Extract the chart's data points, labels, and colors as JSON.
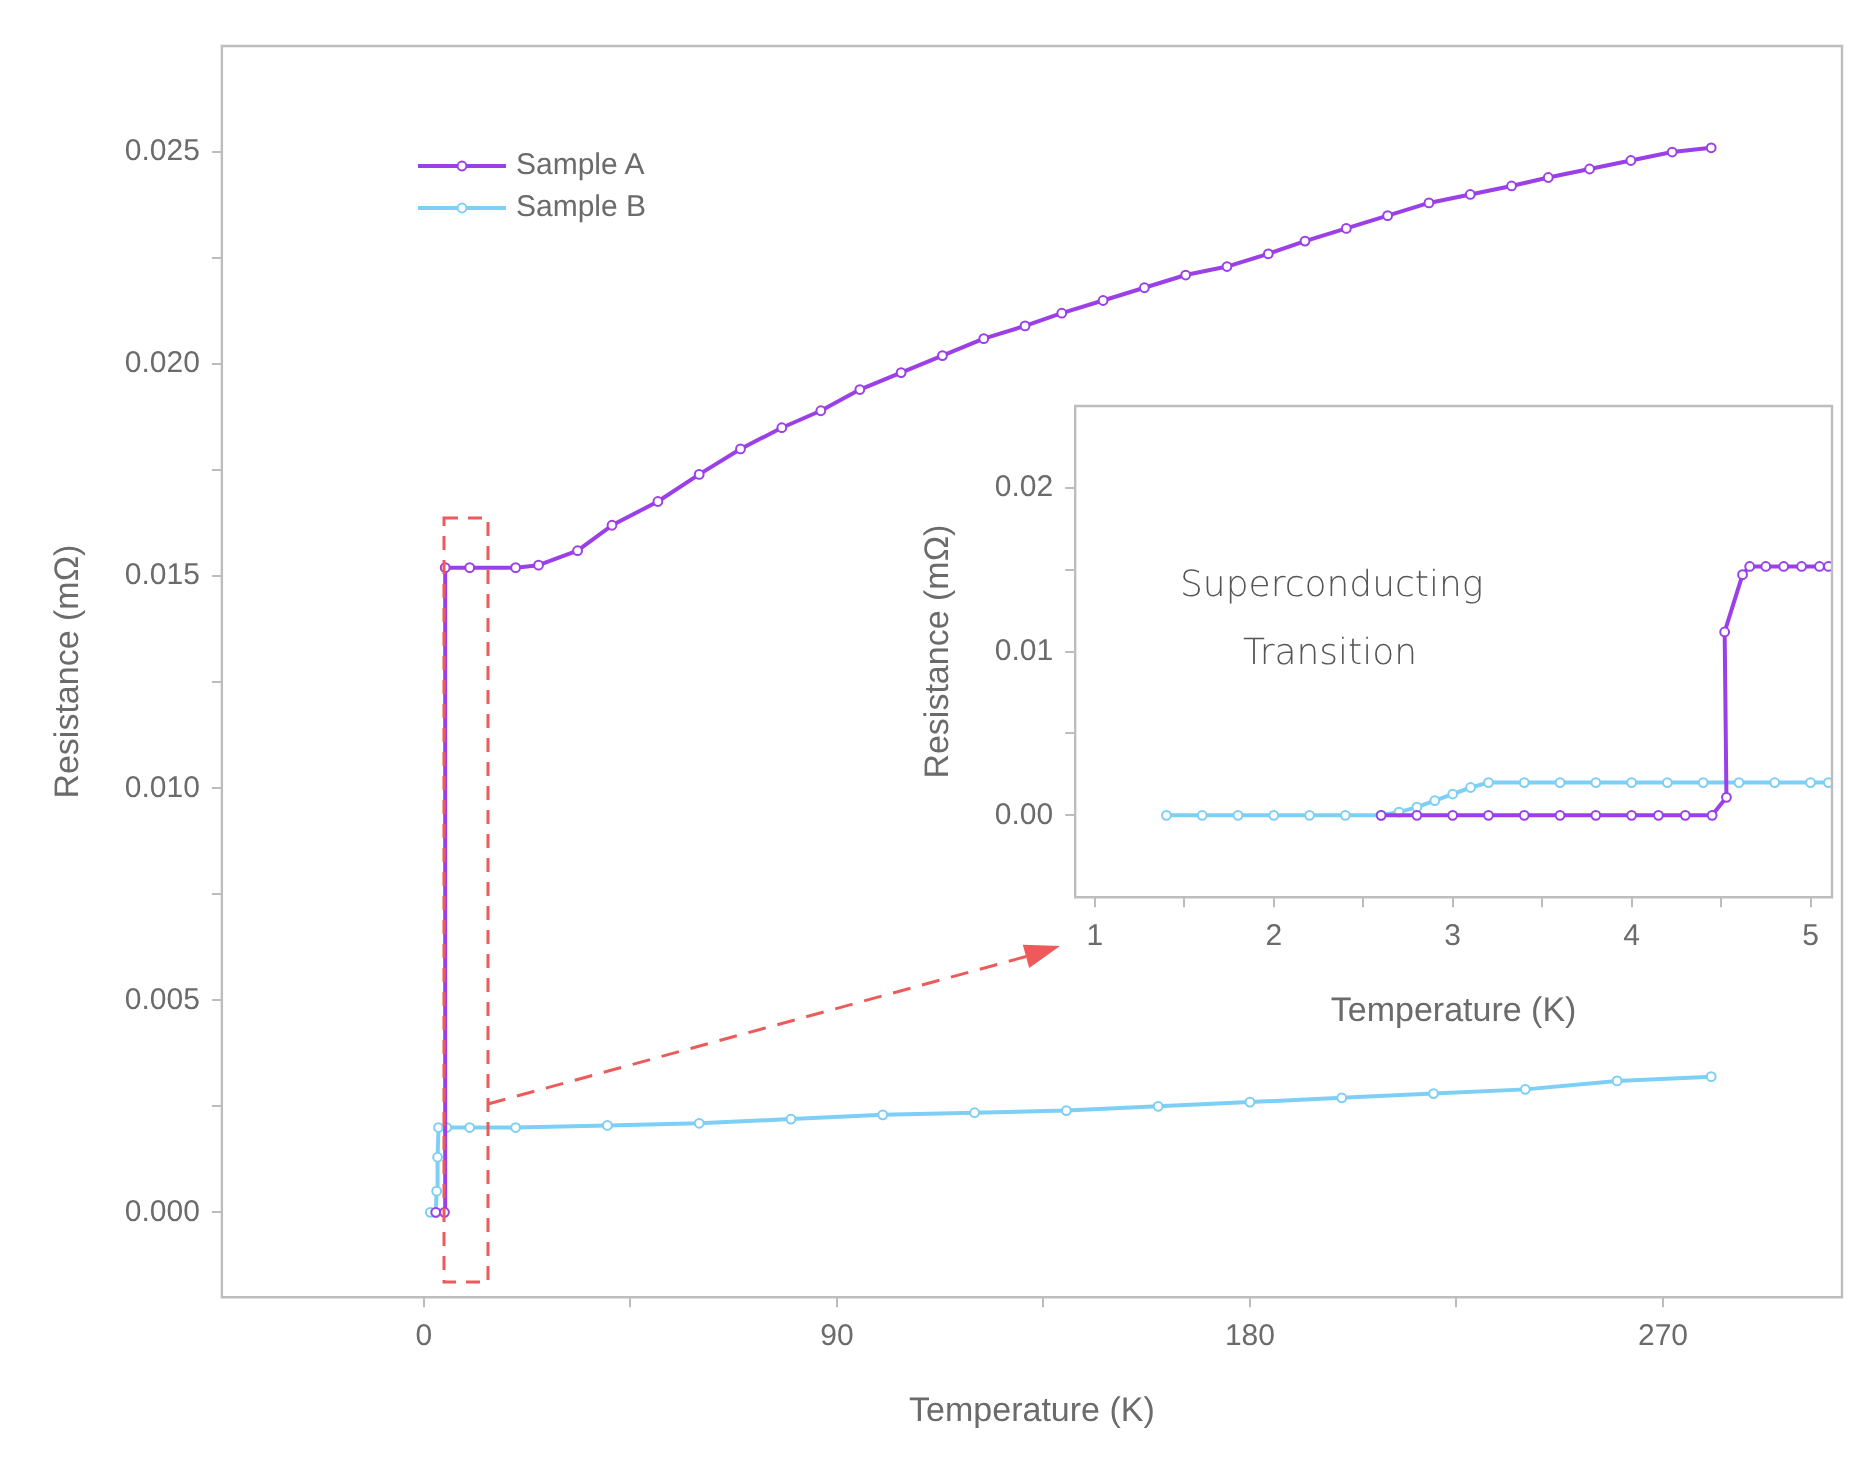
{
  "chart_data": [
    {
      "type": "line",
      "xlabel": "Temperature (K)",
      "ylabel": "Resistance (mΩ)",
      "xlim": [
        -44,
        309
      ],
      "ylim": [
        -0.002,
        0.0275
      ],
      "xticks": [
        0,
        {
          "value": 45,
          "label": null
        },
        90,
        {
          "value": 135,
          "label": null
        },
        180,
        {
          "value": 225,
          "label": null
        },
        270
      ],
      "yticks": [
        {
          "value": 0,
          "label": "0.000"
        },
        {
          "value": 0.0025,
          "label": null
        },
        {
          "value": 0.005,
          "label": "0.005"
        },
        {
          "value": 0.0075,
          "label": null
        },
        {
          "value": 0.01,
          "label": "0.010"
        },
        {
          "value": 0.0125,
          "label": null
        },
        {
          "value": 0.015,
          "label": "0.015"
        },
        {
          "value": 0.0175,
          "label": null
        },
        {
          "value": 0.02,
          "label": "0.020"
        },
        {
          "value": 0.0225,
          "label": null
        },
        {
          "value": 0.025,
          "label": "0.025"
        }
      ],
      "grid": false,
      "legend": "top left",
      "marker": "circle",
      "line_style": "solid",
      "series": [
        {
          "name": "Sample A",
          "color": "#9b3fe8",
          "x": [
            2.6,
            4.5,
            4.66,
            10,
            20,
            25,
            33.5,
            41,
            51,
            60,
            69,
            78,
            86.5,
            95,
            104,
            113,
            122,
            131,
            139,
            148,
            157,
            166,
            175,
            184,
            192,
            201,
            210,
            219,
            228,
            237,
            245,
            254,
            263,
            272,
            280.5
          ],
          "values": [
            0,
            0,
            0.0152,
            0.0152,
            0.0152,
            0.01526,
            0.0156,
            0.0162,
            0.01676,
            0.0174,
            0.018,
            0.0185,
            0.0189,
            0.0194,
            0.0198,
            0.0202,
            0.0206,
            0.0209,
            0.0212,
            0.0215,
            0.0218,
            0.0221,
            0.0223,
            0.0226,
            0.0229,
            0.0232,
            0.0235,
            0.0238,
            0.024,
            0.0242,
            0.0244,
            0.0246,
            0.0248,
            0.025,
            0.0251
          ]
        },
        {
          "name": "Sample B",
          "color": "#7dcff5",
          "x": [
            1.4,
            2.6,
            2.8,
            3.0,
            3.2,
            5,
            10,
            20,
            40,
            60,
            80,
            100,
            120,
            140,
            160,
            180,
            200,
            220,
            240,
            260,
            280.5
          ],
          "values": [
            0,
            0,
            0.0005,
            0.0013,
            0.002,
            0.002,
            0.002,
            0.002,
            0.00205,
            0.0021,
            0.0022,
            0.0023,
            0.00235,
            0.0024,
            0.0025,
            0.0026,
            0.0027,
            0.0028,
            0.0029,
            0.0031,
            0.0032
          ]
        }
      ]
    },
    {
      "type": "line",
      "xlabel": "Temperature (K)",
      "ylabel": "Resistance (mΩ)",
      "xlim": [
        0.89,
        5.12
      ],
      "ylim": [
        -0.005,
        0.025
      ],
      "xticks": [
        1,
        {
          "value": 1.5,
          "label": null
        },
        2,
        {
          "value": 2.5,
          "label": null
        },
        3,
        {
          "value": 3.5,
          "label": null
        },
        4,
        {
          "value": 4.5,
          "label": null
        },
        5
      ],
      "yticks": [
        {
          "value": 0,
          "label": "0.00"
        },
        {
          "value": 0.005,
          "label": null
        },
        {
          "value": 0.01,
          "label": "0.01"
        },
        {
          "value": 0.015,
          "label": null
        },
        {
          "value": 0.02,
          "label": "0.02"
        }
      ],
      "grid": false,
      "marker": "circle",
      "line_style": "solid",
      "annotations": [
        "Superconducting Transition"
      ],
      "series": [
        {
          "color": "#9b3fe8",
          "x": [
            2.6,
            2.8,
            3.0,
            3.2,
            3.4,
            3.6,
            3.8,
            4.0,
            4.15,
            4.3,
            4.45,
            4.53,
            4.52,
            4.62,
            4.66,
            4.75,
            4.85,
            4.95,
            5.05,
            5.1
          ],
          "values": [
            0,
            0,
            0,
            0,
            0,
            0,
            0,
            0,
            0,
            0,
            0,
            0.0011,
            0.0112,
            0.0147,
            0.0152,
            0.0152,
            0.0152,
            0.0152,
            0.0152,
            0.0152
          ]
        },
        {
          "color": "#7dcff5",
          "x": [
            1.4,
            1.6,
            1.8,
            2.0,
            2.2,
            2.4,
            2.6,
            2.7,
            2.8,
            2.9,
            3.0,
            3.1,
            3.2,
            3.4,
            3.6,
            3.8,
            4.0,
            4.2,
            4.4,
            4.6,
            4.8,
            5.0,
            5.1
          ],
          "values": [
            0,
            0,
            0,
            0,
            0,
            0,
            0,
            0.0002,
            0.0005,
            0.0009,
            0.0013,
            0.0017,
            0.002,
            0.002,
            0.002,
            0.002,
            0.002,
            0.002,
            0.002,
            0.002,
            0.002,
            0.002,
            0.002
          ]
        }
      ]
    }
  ]
}
